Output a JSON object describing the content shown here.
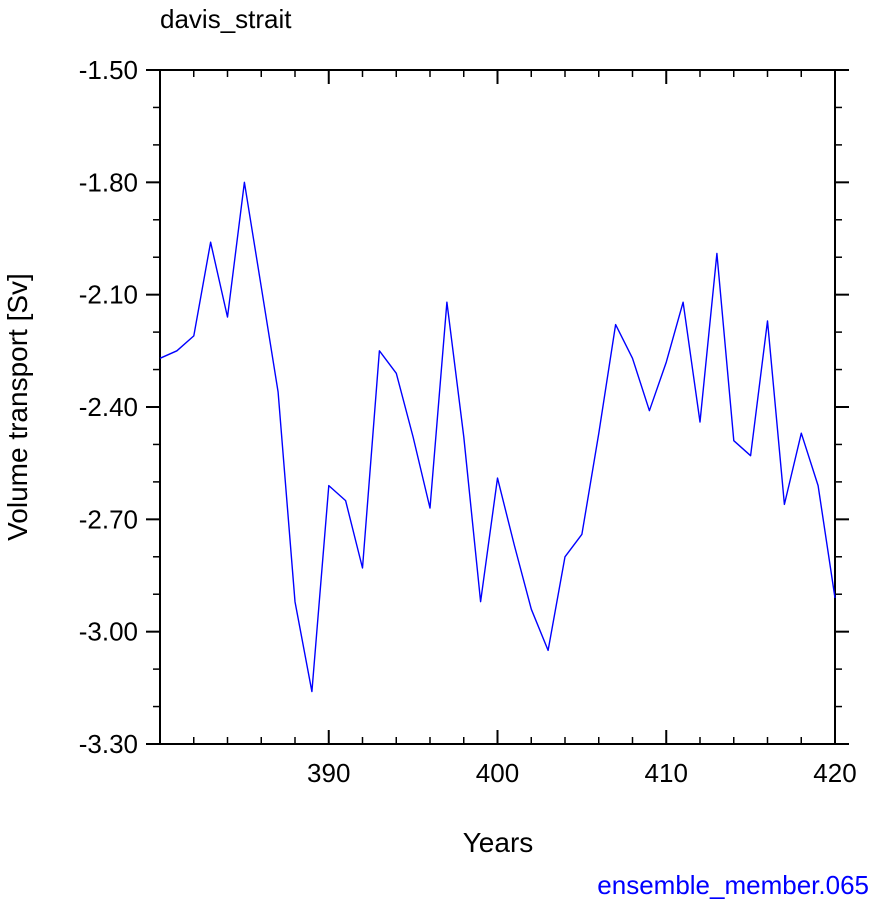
{
  "chart_data": {
    "type": "line",
    "title": "davis_strait",
    "xlabel": "Years",
    "ylabel": "Volume transport [Sv]",
    "xlim": [
      380,
      420
    ],
    "ylim": [
      -3.3,
      -1.5
    ],
    "x_ticks": [
      390,
      400,
      410,
      420
    ],
    "x_tick_labels": [
      "390",
      "400",
      "410",
      "420"
    ],
    "y_ticks": [
      -1.5,
      -1.8,
      -2.1,
      -2.4,
      -2.7,
      -3.0,
      -3.3
    ],
    "y_tick_labels": [
      "-1.50",
      "-1.80",
      "-2.10",
      "-2.40",
      "-2.70",
      "-3.00",
      "-3.30"
    ],
    "grid": false,
    "series": [
      {
        "color": "#0000ff",
        "x": [
          381,
          382,
          383,
          384,
          385,
          386,
          387,
          388,
          389,
          390,
          391,
          392,
          393,
          394,
          395,
          396,
          397,
          398,
          399,
          400,
          401,
          402,
          403,
          404,
          405,
          406,
          407,
          408,
          409,
          410,
          411,
          412,
          413,
          414,
          415,
          416,
          417,
          418,
          419,
          420
        ],
        "values": [
          -2.25,
          -2.21,
          -1.96,
          -2.16,
          -1.8,
          -2.08,
          -2.36,
          -2.92,
          -3.16,
          -2.61,
          -2.65,
          -2.83,
          -2.25,
          -2.31,
          -2.48,
          -2.67,
          -2.12,
          -2.48,
          -2.92,
          -2.59,
          -2.77,
          -2.94,
          -3.05,
          -2.8,
          -2.74,
          -2.47,
          -2.18,
          -2.27,
          -2.41,
          -2.28,
          -2.12,
          -2.44,
          -1.99,
          -2.49,
          -2.53,
          -2.17,
          -2.66,
          -2.47,
          -2.61,
          -2.91
        ]
      }
    ]
  },
  "footer_label": "ensemble_member.065"
}
